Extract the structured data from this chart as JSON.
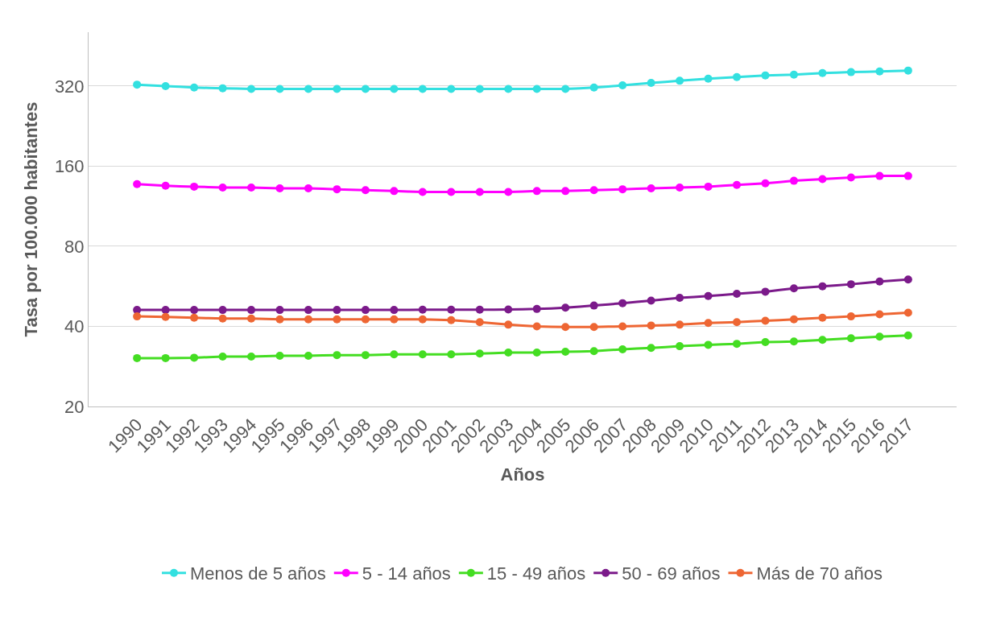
{
  "chart_data": {
    "type": "line",
    "xlabel": "Años",
    "ylabel": "Tasa por 100.000 habitantes",
    "categories": [
      "1990",
      "1991",
      "1992",
      "1993",
      "1994",
      "1995",
      "1996",
      "1997",
      "1998",
      "1999",
      "2000",
      "2001",
      "2002",
      "2003",
      "2004",
      "2005",
      "2006",
      "2007",
      "2008",
      "2009",
      "2010",
      "2011",
      "2012",
      "2013",
      "2014",
      "2015",
      "2016",
      "2017"
    ],
    "series": [
      {
        "name": "Menos de 5 años",
        "color": "#33e0e0",
        "values": [
          324,
          320,
          316,
          314,
          312,
          312,
          312,
          312,
          312,
          312,
          312,
          312,
          312,
          312,
          312,
          312,
          316,
          322,
          329,
          335,
          341,
          346,
          351,
          353,
          358,
          361,
          363,
          366
        ]
      },
      {
        "name": "5 - 14 años",
        "color": "#ff00ff",
        "values": [
          137,
          135,
          134,
          133,
          133,
          132,
          132,
          131,
          130,
          129,
          128,
          128,
          128,
          128,
          129,
          129,
          130,
          131,
          132,
          133,
          134,
          136,
          138,
          141,
          143,
          145,
          147,
          147
        ]
      },
      {
        "name": "15 - 49 años",
        "color": "#44dd22",
        "values": [
          30.4,
          30.4,
          30.5,
          30.8,
          30.8,
          31,
          31,
          31.2,
          31.2,
          31.4,
          31.4,
          31.4,
          31.6,
          31.9,
          31.9,
          32.1,
          32.3,
          32.8,
          33.2,
          33.7,
          34.1,
          34.4,
          34.9,
          35.1,
          35.6,
          36.1,
          36.6,
          37
        ]
      },
      {
        "name": "50 - 69 años",
        "color": "#7b1a8a",
        "values": [
          46.1,
          46.1,
          46.1,
          46.1,
          46.1,
          46.1,
          46.1,
          46.1,
          46.1,
          46.1,
          46.2,
          46.2,
          46.2,
          46.3,
          46.5,
          47,
          47.9,
          48.9,
          50,
          51.2,
          52,
          53,
          54,
          55.6,
          56.6,
          57.6,
          59,
          60
        ]
      },
      {
        "name": "Más de 70 años",
        "color": "#ee6633",
        "values": [
          43.6,
          43.4,
          43.1,
          42.8,
          42.8,
          42.5,
          42.5,
          42.5,
          42.5,
          42.5,
          42.5,
          42.2,
          41.5,
          40.6,
          40,
          39.8,
          39.8,
          40,
          40.3,
          40.6,
          41.2,
          41.5,
          42,
          42.5,
          43.1,
          43.6,
          44.4,
          45
        ]
      }
    ],
    "log": "y",
    "ylim": [
      20,
      510
    ],
    "yticks": [
      20,
      40,
      80,
      160,
      320
    ],
    "grid": "y",
    "legend": "bottom",
    "marker": "circle",
    "line_style": "solid"
  }
}
